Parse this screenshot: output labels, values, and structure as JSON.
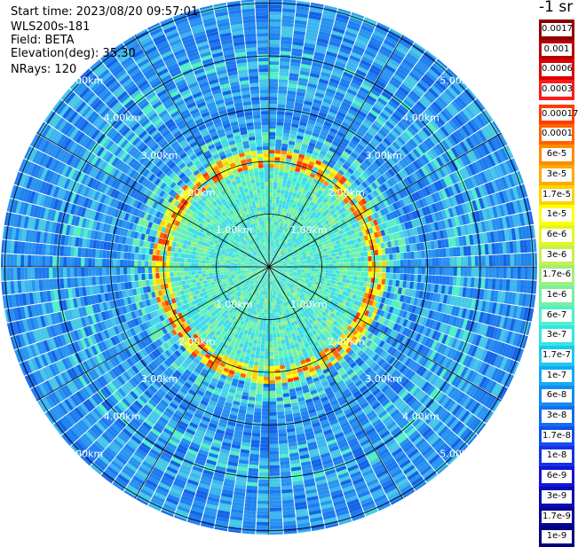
{
  "header": {
    "start_time": "Start time: 2023/08/20 09:57:01",
    "station": "WLS200s-181",
    "field": "Field: BETA",
    "elevation": "Elevation(deg): 35.30",
    "nrays": "NRays: 120"
  },
  "unit_label": "-1 sr",
  "range_rings": [
    {
      "label": "1.00km",
      "km": 1
    },
    {
      "label": "2.00km",
      "km": 2
    },
    {
      "label": "3.00km",
      "km": 3
    },
    {
      "label": "4.00km",
      "km": 4
    },
    {
      "label": "5.00km",
      "km": 5
    }
  ],
  "legend_top": [
    {
      "label": "0.0017",
      "color": "#8c0000"
    },
    {
      "label": "0.001",
      "color": "#b80000"
    },
    {
      "label": "0.0006",
      "color": "#dd0000"
    },
    {
      "label": "0.0003",
      "color": "#ff1a1a"
    }
  ],
  "legend_bottom": [
    {
      "label": "0.00017",
      "color": "#ff3c00"
    },
    {
      "label": "0.0001",
      "color": "#ff6400"
    },
    {
      "label": "6e-5",
      "color": "#ff8c00"
    },
    {
      "label": "3e-5",
      "color": "#ffaa00"
    },
    {
      "label": "1.7e-5",
      "color": "#ffd200"
    },
    {
      "label": "1e-5",
      "color": "#ffff00"
    },
    {
      "label": "6e-6",
      "color": "#e6f51e"
    },
    {
      "label": "3e-6",
      "color": "#c8f050"
    },
    {
      "label": "1.7e-6",
      "color": "#a0f078"
    },
    {
      "label": "1e-6",
      "color": "#78f0a0"
    },
    {
      "label": "6e-7",
      "color": "#50f0c8"
    },
    {
      "label": "3e-7",
      "color": "#32e6e6"
    },
    {
      "label": "1.7e-7",
      "color": "#1ec8f0"
    },
    {
      "label": "1e-7",
      "color": "#14aaf0"
    },
    {
      "label": "6e-8",
      "color": "#148cf0"
    },
    {
      "label": "3e-8",
      "color": "#146ef0"
    },
    {
      "label": "1.7e-8",
      "color": "#1450f0"
    },
    {
      "label": "1e-8",
      "color": "#1432e6"
    },
    {
      "label": "6e-9",
      "color": "#1414dc"
    },
    {
      "label": "3e-9",
      "color": "#0a0ab4"
    },
    {
      "label": "1.7e-9",
      "color": "#050596"
    },
    {
      "label": "1e-9",
      "color": "#000078"
    }
  ]
}
